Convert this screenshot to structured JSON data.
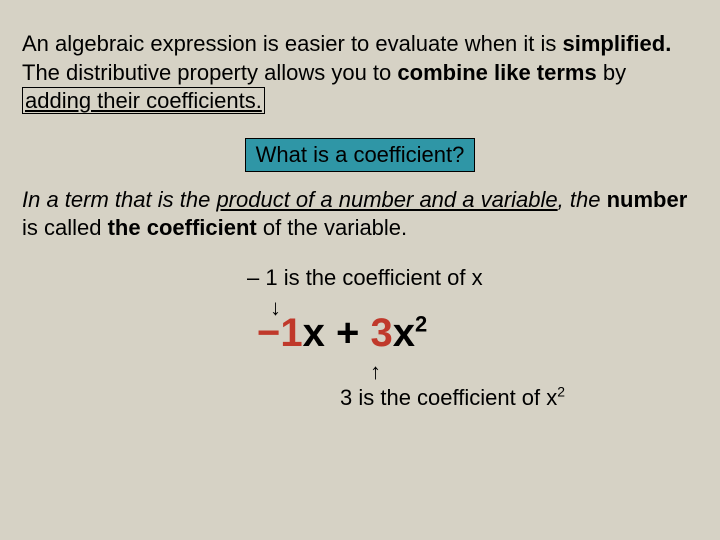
{
  "background_color": "#d6d2c5",
  "accent_color": "#2f96a6",
  "red_color": "#c0392b",
  "font_family": "Comic Sans MS",
  "para1": {
    "t1": "An algebraic expression is easier to evaluate when it is ",
    "bold1": "simplified.",
    "t2": "  The distributive property allows you to ",
    "bold2": "combine like terms",
    "t3": " by ",
    "boxed": "adding their coefficients."
  },
  "question": "What is a coefficient?",
  "para2": {
    "t1": "In a term that is the ",
    "u1": "product of a number and a variable",
    "t2": ", the ",
    "bold1": "number",
    "t3": " is called ",
    "bold2": "the coefficient",
    "t4": " of the variable."
  },
  "coeff": {
    "topnote": "– 1 is the coefficient of x",
    "arrow_down": "↓",
    "arrow_up": "↑",
    "expr_neg": "−",
    "expr_one": "1",
    "expr_x1": "x",
    "expr_plus": " + ",
    "expr_three": "3",
    "expr_x2": "x",
    "expr_sq": "2",
    "botnote_pre": "3 is the coefficient of x",
    "botnote_sup": "2"
  }
}
